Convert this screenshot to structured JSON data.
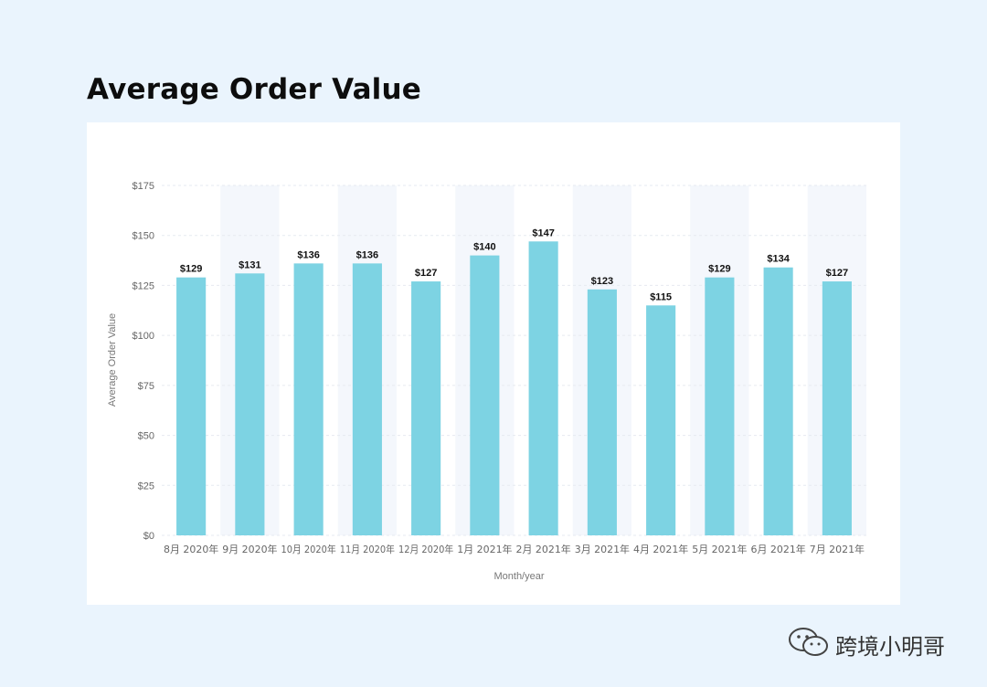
{
  "watermark": {
    "text": "跨境小明哥",
    "icon": "wechat-icon"
  },
  "chart_data": {
    "type": "bar",
    "title": "Average Order Value",
    "xlabel": "Month/year",
    "ylabel": "Average Order Value",
    "categories": [
      "8月 2020年",
      "9月 2020年",
      "10月 2020年",
      "11月 2020年",
      "12月 2020年",
      "1月 2021年",
      "2月 2021年",
      "3月 2021年",
      "4月 2021年",
      "5月 2021年",
      "6月 2021年",
      "7月 2021年"
    ],
    "values": [
      129,
      131,
      136,
      136,
      127,
      140,
      147,
      123,
      115,
      129,
      134,
      127
    ],
    "value_labels": [
      "$129",
      "$131",
      "$136",
      "$136",
      "$127",
      "$140",
      "$147",
      "$123",
      "$115",
      "$129",
      "$134",
      "$127"
    ],
    "ylim": [
      0,
      175
    ],
    "yticks": [
      0,
      25,
      50,
      75,
      100,
      125,
      150,
      175
    ],
    "ytick_labels": [
      "$0",
      "$25",
      "$50",
      "$75",
      "$100",
      "$125",
      "$150",
      "$175"
    ],
    "grid": true,
    "colors": {
      "bar": "#7dd3e3",
      "band": "#f4f7fc",
      "grid": "#e6eaf0",
      "text": "#666666",
      "label": "#111111"
    }
  }
}
